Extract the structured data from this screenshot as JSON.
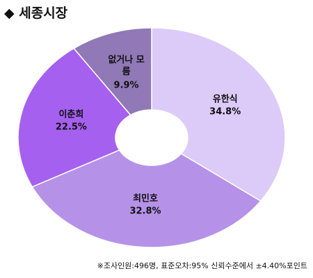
{
  "chart_data": {
    "type": "donut",
    "title": "세종시장",
    "categories": [
      "유한식",
      "최민호",
      "이춘희",
      "없거나 모름"
    ],
    "values": [
      34.8,
      32.8,
      22.5,
      9.9
    ],
    "value_labels": [
      "34.8%",
      "32.8%",
      "22.5%",
      "9.9%"
    ],
    "colors": [
      "#dccaf8",
      "#b592e8",
      "#a560f0",
      "#9079b6"
    ],
    "note": "※조사인원:496명, 표준오차:95% 신뢰수준에서 ±4.40%포인트"
  }
}
